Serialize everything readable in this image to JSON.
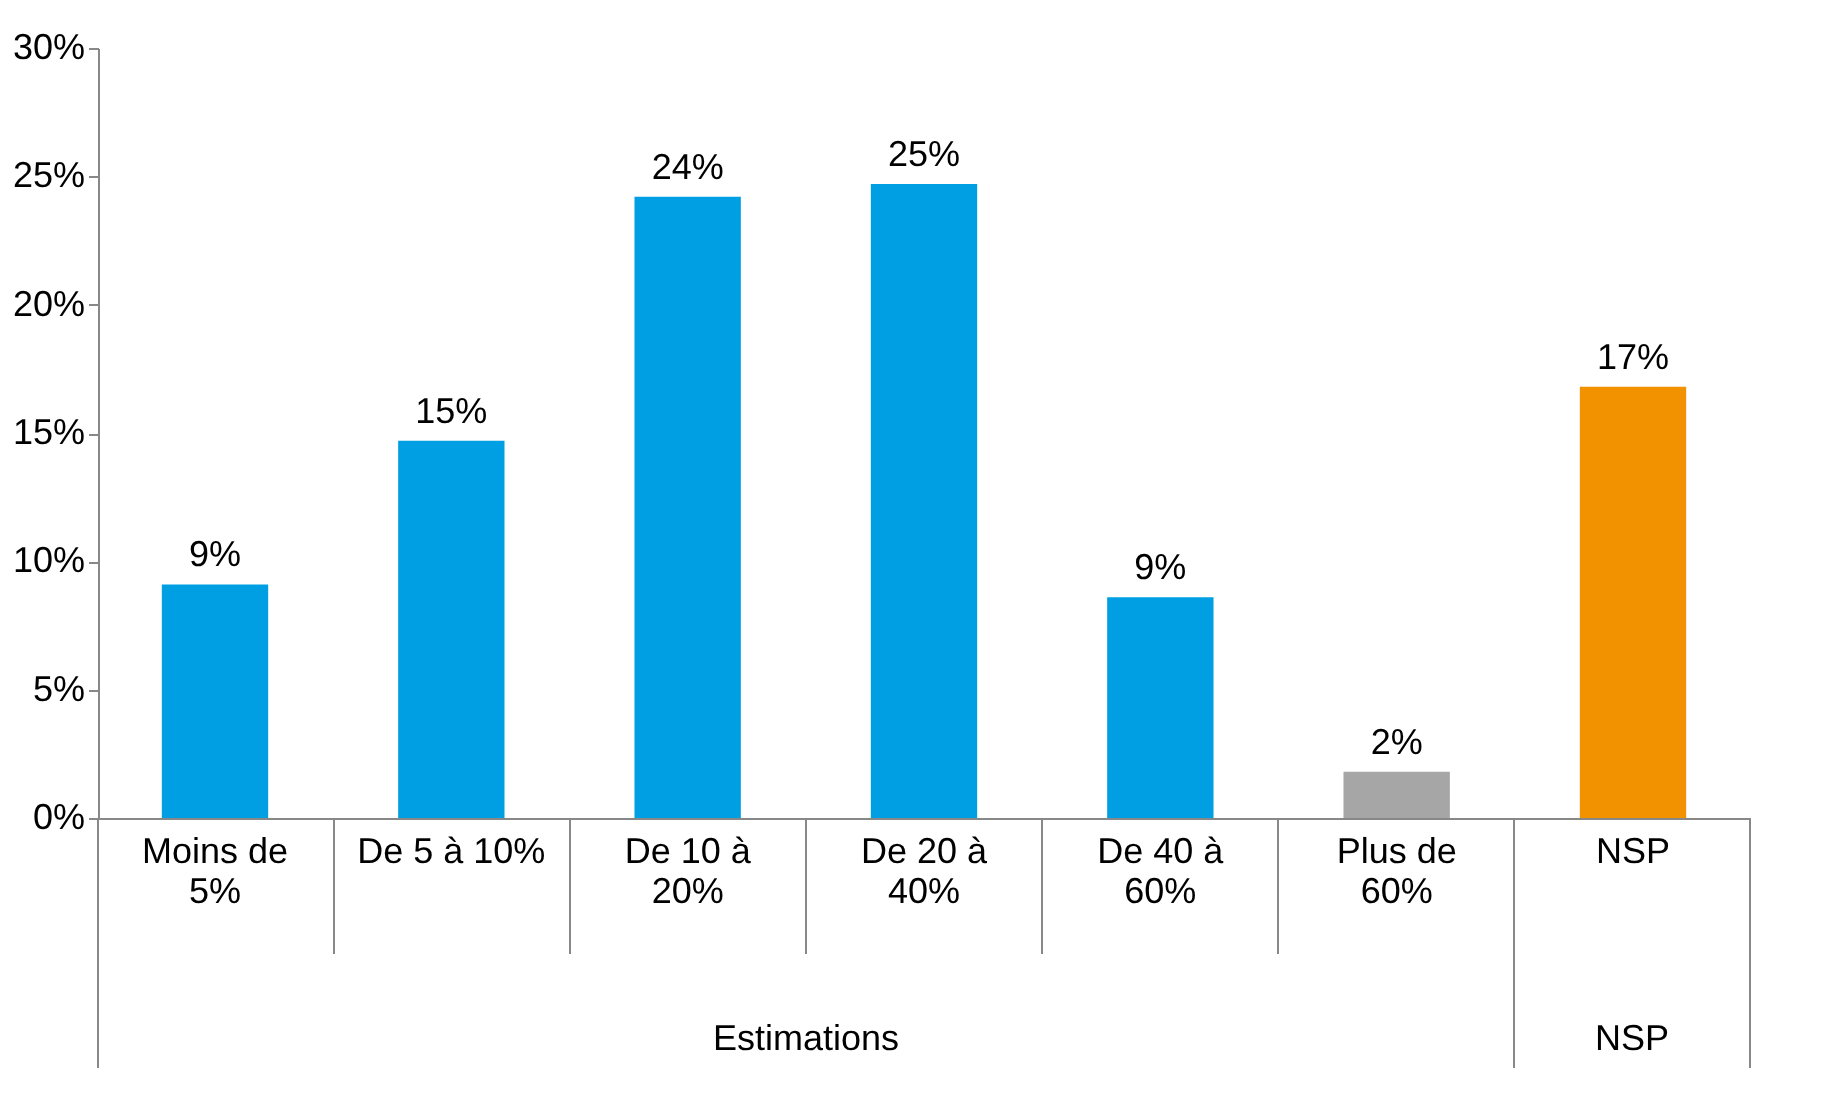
{
  "chart_data": {
    "type": "bar",
    "categories": [
      "Moins de 5%",
      "De 5 à 10%",
      "De 10 à 20%",
      "De 20 à 40%",
      "De 40 à 60%",
      "Plus de 60%",
      "NSP"
    ],
    "values": [
      9.1,
      14.7,
      24.2,
      24.7,
      8.6,
      1.8,
      16.8
    ],
    "colors": [
      "#009fe3",
      "#009fe3",
      "#009fe3",
      "#009fe3",
      "#009fe3",
      "#a6a6a6",
      "#f39200"
    ],
    "value_labels": [
      "9%",
      "15%",
      "24%",
      "25%",
      "9%",
      "2%",
      "17%"
    ],
    "ylim": [
      0,
      30
    ],
    "yticks": [
      {
        "value": 0,
        "label": "0%"
      },
      {
        "value": 5,
        "label": "5%"
      },
      {
        "value": 10,
        "label": "10%"
      },
      {
        "value": 15,
        "label": "15%"
      },
      {
        "value": 20,
        "label": "20%"
      },
      {
        "value": 25,
        "label": "25%"
      },
      {
        "value": 30,
        "label": "30%"
      }
    ],
    "annotations": [
      "Estimations",
      "NSP"
    ],
    "grid": false
  }
}
